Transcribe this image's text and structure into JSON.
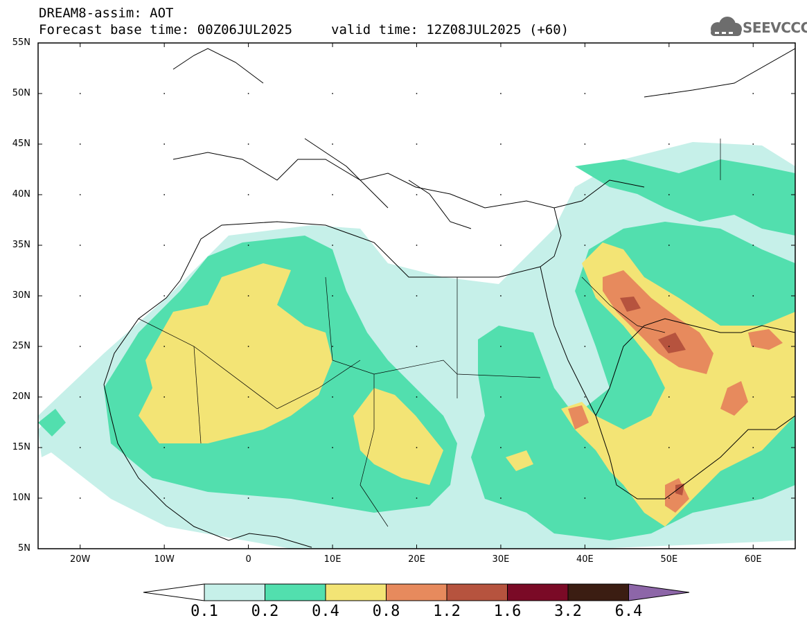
{
  "header": {
    "line1": "DREAM8-assim: AOT",
    "line2": "Forecast base time: 00Z06JUL2025",
    "valid": "valid time: 12Z08JUL2025 (+60)"
  },
  "logo": {
    "text": "SEEVCCC",
    "icon": "cloud-icon",
    "color": "#6d6d6d"
  },
  "map": {
    "lat_labels": [
      "55N",
      "50N",
      "45N",
      "40N",
      "35N",
      "30N",
      "25N",
      "20N",
      "15N",
      "10N",
      "5N"
    ],
    "lon_labels": [
      "20W",
      "10W",
      "0",
      "10E",
      "20E",
      "30E",
      "40E",
      "50E",
      "60E"
    ],
    "extent": {
      "lon": [
        -25,
        65
      ],
      "lat": [
        5,
        55
      ]
    }
  },
  "colorbar": {
    "levels": [
      "0.1",
      "0.2",
      "0.4",
      "0.8",
      "1.2",
      "1.6",
      "3.2",
      "6.4"
    ],
    "colors": [
      "#c6f0e9",
      "#52dfae",
      "#f3e475",
      "#e78a5d",
      "#b6533e",
      "#7a0a26",
      "#3b1d12",
      "#8d66a8"
    ],
    "under_color": "#ffffff",
    "over_color": "#8d66a8"
  }
}
